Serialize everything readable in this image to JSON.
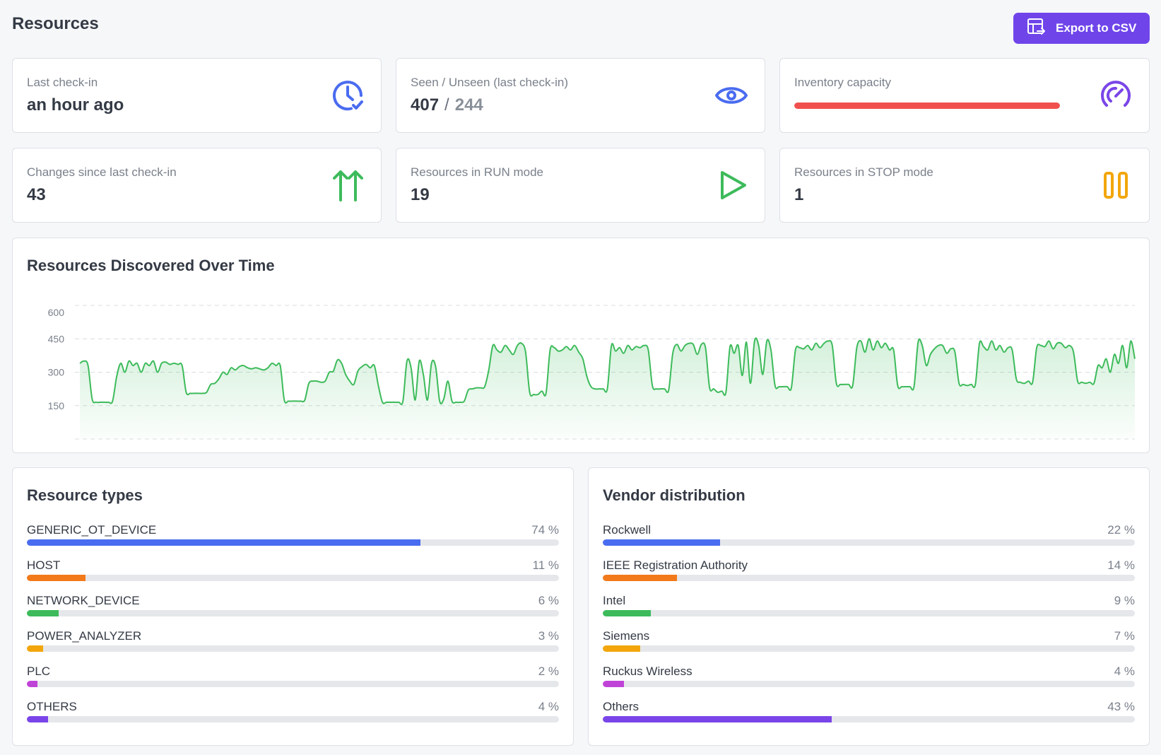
{
  "page": {
    "title": "Resources"
  },
  "toolbar": {
    "export_label": "Export to CSV"
  },
  "stats": {
    "last_checkin": {
      "label": "Last check-in",
      "value": "an hour ago",
      "icon": "clock-check-icon",
      "color": "#4a6cf0"
    },
    "seen_unseen": {
      "label": "Seen / Unseen (last check-in)",
      "seen": "407",
      "separator": "/",
      "unseen": "244",
      "icon": "eye-icon",
      "color": "#4a6cf0"
    },
    "inventory": {
      "label": "Inventory capacity",
      "fill_fraction": 1.0,
      "bar_color": "#f0504e",
      "icon": "gauge-icon",
      "color": "#7a45e8"
    },
    "changes": {
      "label": "Changes since last check-in",
      "value": "43",
      "icon": "double-arrow-up-icon",
      "color": "#3dbb5b"
    },
    "run": {
      "label": "Resources in RUN mode",
      "value": "19",
      "icon": "play-icon",
      "color": "#3dbb5b"
    },
    "stop": {
      "label": "Resources in STOP mode",
      "value": "1",
      "icon": "pause-icon",
      "color": "#f2a60c"
    }
  },
  "chart": {
    "title": "Resources Discovered Over Time"
  },
  "chart_data": {
    "type": "area",
    "title": "Resources Discovered Over Time",
    "y_ticks": [
      "600",
      "450",
      "300",
      "150"
    ],
    "ylim": [
      0,
      600
    ],
    "grid": true,
    "line_color": "#3dbb5b",
    "series": [
      {
        "values": [
          340,
          350,
          330,
          180,
          165,
          165,
          165,
          165,
          170,
          280,
          340,
          300,
          350,
          330,
          340,
          300,
          340,
          330,
          350,
          300,
          340,
          345,
          335,
          340,
          335,
          330,
          210,
          205,
          205,
          205,
          205,
          210,
          245,
          250,
          270,
          300,
          290,
          320,
          310,
          325,
          330,
          320,
          315,
          320,
          315,
          310,
          320,
          340,
          330,
          330,
          175,
          170,
          170,
          170,
          170,
          175,
          250,
          260,
          260,
          255,
          260,
          300,
          305,
          355,
          340,
          290,
          260,
          245,
          305,
          325,
          335,
          320,
          330,
          240,
          165,
          165,
          165,
          165,
          165,
          170,
          350,
          320,
          175,
          350,
          290,
          175,
          340,
          325,
          170,
          180,
          260,
          170,
          165,
          165,
          170,
          220,
          225,
          230,
          230,
          235,
          310,
          420,
          400,
          390,
          420,
          400,
          380,
          420,
          430,
          390,
          210,
          200,
          200,
          215,
          205,
          400,
          410,
          395,
          400,
          415,
          400,
          420,
          390,
          360,
          280,
          235,
          225,
          225,
          225,
          225,
          420,
          395,
          410,
          385,
          420,
          400,
          415,
          410,
          420,
          400,
          240,
          225,
          225,
          225,
          220,
          385,
          425,
          395,
          420,
          430,
          425,
          380,
          425,
          410,
          230,
          225,
          210,
          215,
          210,
          415,
          385,
          420,
          285,
          435,
          250,
          440,
          420,
          290,
          440,
          400,
          240,
          235,
          235,
          235,
          230,
          400,
          410,
          405,
          420,
          400,
          430,
          410,
          430,
          440,
          420,
          250,
          245,
          245,
          245,
          240,
          410,
          440,
          390,
          450,
          400,
          440,
          410,
          430,
          400,
          400,
          240,
          235,
          235,
          235,
          235,
          435,
          420,
          330,
          380,
          405,
          420,
          420,
          385,
          405,
          390,
          250,
          245,
          240,
          245,
          245,
          430,
          415,
          400,
          440,
          400,
          420,
          390,
          410,
          400,
          270,
          255,
          250,
          260,
          255,
          410,
          420,
          415,
          440,
          405,
          430,
          430,
          410,
          420,
          390,
          260,
          255,
          250,
          255,
          250,
          330,
          320,
          360,
          300,
          380,
          340,
          420,
          320,
          440,
          360
        ]
      }
    ]
  },
  "resource_types": {
    "title": "Resource types",
    "items": [
      {
        "name": "GENERIC_OT_DEVICE",
        "pct_label": "74 %",
        "pct": 74,
        "color": "#4a6cf0"
      },
      {
        "name": "HOST",
        "pct_label": "11 %",
        "pct": 11,
        "color": "#f27a1a"
      },
      {
        "name": "NETWORK_DEVICE",
        "pct_label": "6 %",
        "pct": 6,
        "color": "#3dbb5b"
      },
      {
        "name": "POWER_ANALYZER",
        "pct_label": "3 %",
        "pct": 3,
        "color": "#f2a60c"
      },
      {
        "name": "PLC",
        "pct_label": "2 %",
        "pct": 2,
        "color": "#c043d8"
      },
      {
        "name": "OTHERS",
        "pct_label": "4 %",
        "pct": 4,
        "color": "#7a45e8"
      }
    ]
  },
  "vendors": {
    "title": "Vendor distribution",
    "items": [
      {
        "name": "Rockwell",
        "pct_label": "22 %",
        "pct": 22,
        "color": "#4a6cf0"
      },
      {
        "name": "IEEE Registration Authority",
        "pct_label": "14 %",
        "pct": 14,
        "color": "#f27a1a"
      },
      {
        "name": "Intel",
        "pct_label": "9 %",
        "pct": 9,
        "color": "#3dbb5b"
      },
      {
        "name": "Siemens",
        "pct_label": "7 %",
        "pct": 7,
        "color": "#f2a60c"
      },
      {
        "name": "Ruckus Wireless",
        "pct_label": "4 %",
        "pct": 4,
        "color": "#c043d8"
      },
      {
        "name": "Others",
        "pct_label": "43 %",
        "pct": 43,
        "color": "#7a45e8"
      }
    ]
  }
}
